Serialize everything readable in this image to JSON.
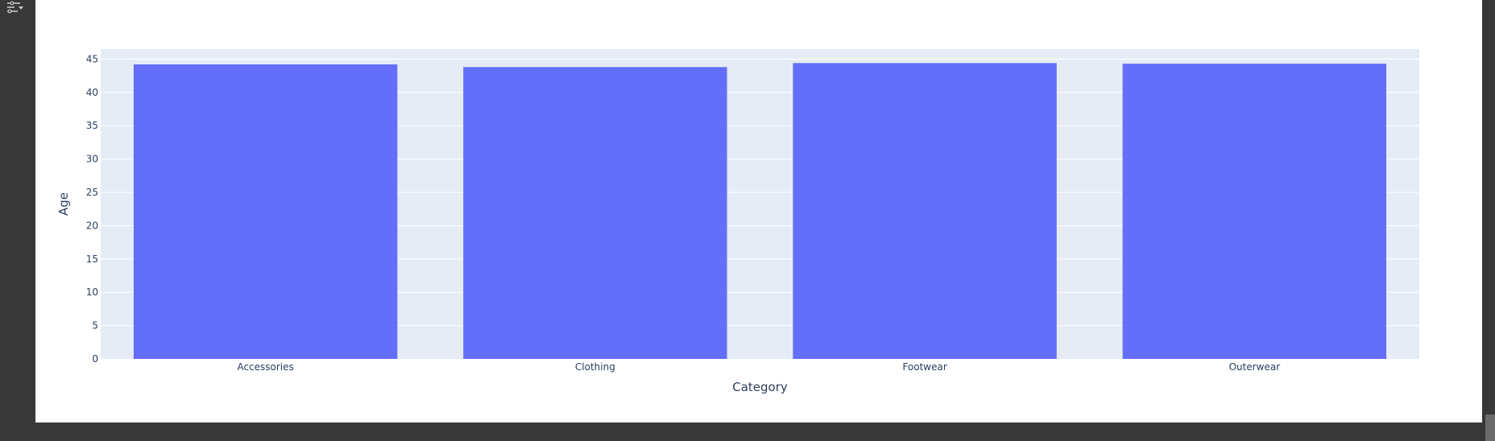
{
  "colors": {
    "plot_bg": "#e5ecf6",
    "bar": "#636efa",
    "grid": "#ffffff",
    "text": "#2a3f5f",
    "page_bg": "#383838"
  },
  "toolbar": {
    "icon": "filter-settings-icon"
  },
  "chart_data": {
    "type": "bar",
    "categories": [
      "Accessories",
      "Clothing",
      "Footwear",
      "Outerwear"
    ],
    "values": [
      44.2,
      43.8,
      44.4,
      44.3
    ],
    "xlabel": "Category",
    "ylabel": "Age",
    "ylim": [
      0,
      46.5
    ],
    "yticks": [
      0,
      5,
      10,
      15,
      20,
      25,
      30,
      35,
      40,
      45
    ],
    "grid": true
  }
}
